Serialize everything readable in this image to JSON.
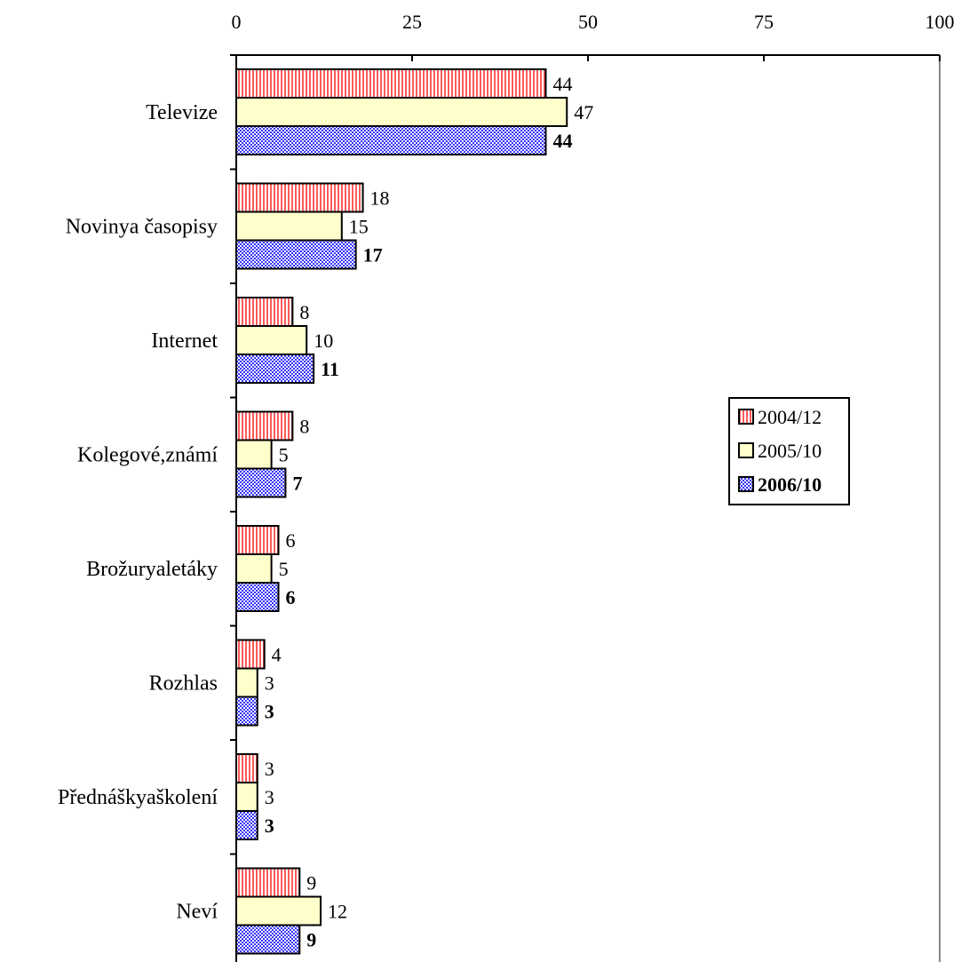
{
  "chart_data": {
    "type": "bar",
    "orientation": "horizontal",
    "title": "",
    "xlabel": "",
    "ylabel": "",
    "xlim": [
      0,
      100
    ],
    "x_ticks": [
      0,
      25,
      50,
      75,
      100
    ],
    "x_tick_labels": [
      "0",
      "25",
      "50",
      "75",
      "100"
    ],
    "x_axis_position": "top",
    "grid": false,
    "legend_position": "right",
    "categories": [
      "Televize",
      "Novinya  časopisy",
      "Internet",
      "Kolegové,známí",
      "Brožuryaletáky",
      "Rozhlas",
      "Přednáškyaškolení",
      "Neví"
    ],
    "series": [
      {
        "name": "2004/12",
        "values": [
          44,
          18,
          8,
          8,
          6,
          4,
          3,
          9
        ],
        "value_labels": [
          "44",
          "18",
          "8",
          "8",
          "6",
          "4",
          "3",
          "9"
        ],
        "color": "#ff5b5b",
        "pattern": "vertical-stripes",
        "bold": false
      },
      {
        "name": "2005/10",
        "values": [
          47,
          15,
          10,
          5,
          5,
          3,
          3,
          12
        ],
        "value_labels": [
          "47",
          "15",
          "10",
          "5",
          "5",
          "3",
          "3",
          "12"
        ],
        "color": "#ffffcc",
        "pattern": "solid",
        "bold": false
      },
      {
        "name": "2006/10",
        "values": [
          44,
          17,
          11,
          7,
          6,
          3,
          3,
          9
        ],
        "value_labels": [
          "44",
          "17",
          "11",
          "7",
          "6",
          "3",
          "3",
          "9"
        ],
        "color": "#3333ff",
        "pattern": "checker",
        "bold": true
      }
    ]
  }
}
